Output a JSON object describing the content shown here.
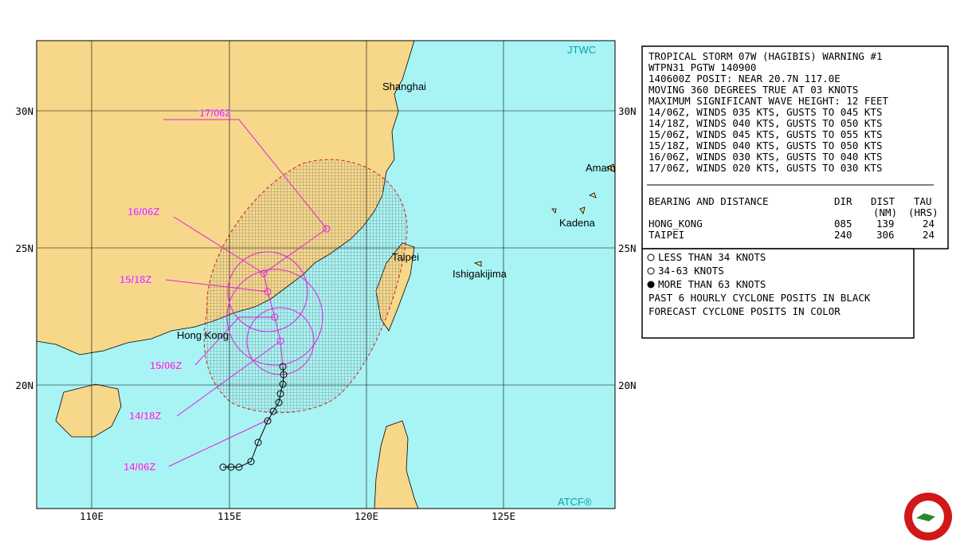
{
  "map": {
    "brand": "JTWC",
    "footer": "ATCF®",
    "lat_labels": [
      "30N",
      "25N",
      "20N"
    ],
    "lon_labels": [
      "110E",
      "115E",
      "120E",
      "125E"
    ],
    "places": [
      "Shanghai",
      "Amam",
      "Kadena",
      "Taipei",
      "Ishigakijima",
      "Hong Kong"
    ],
    "forecast_labels": [
      "17/06Z",
      "16/06Z",
      "15/18Z",
      "15/06Z",
      "14/18Z",
      "14/06Z"
    ]
  },
  "warning": {
    "lines": [
      "TROPICAL STORM 07W (HAGIBIS) WARNING #1",
      "WTPN31 PGTW 140900",
      "140600Z POSIT: NEAR 20.7N 117.0E",
      "MOVING 360 DEGREES TRUE AT 03 KNOTS",
      "MAXIMUM SIGNIFICANT WAVE HEIGHT: 12 FEET",
      "14/06Z, WINDS 035 KTS, GUSTS TO 045 KTS",
      "14/18Z, WINDS 040 KTS, GUSTS TO 050 KTS",
      "15/06Z, WINDS 045 KTS, GUSTS TO 055 KTS",
      "15/18Z, WINDS 040 KTS, GUSTS TO 050 KTS",
      "16/06Z, WINDS 030 KTS, GUSTS TO 040 KTS",
      "17/06Z, WINDS 020 KTS, GUSTS TO 030 KTS"
    ],
    "table": {
      "header": [
        "BEARING AND DISTANCE",
        "DIR",
        "DIST",
        "TAU"
      ],
      "units": [
        "(NM)",
        "(HRS)"
      ],
      "rows": [
        [
          "HONG_KONG",
          "085",
          "139",
          "24"
        ],
        [
          "TAIPEI",
          "240",
          "306",
          "24"
        ]
      ]
    }
  },
  "legend": {
    "lines": [
      "LESS THAN 34 KNOTS",
      "34-63 KNOTS",
      "MORE THAN 63 KNOTS",
      "PAST 6 HOURLY CYCLONE POSITS IN BLACK",
      "FORECAST CYCLONE POSITS IN COLOR"
    ]
  }
}
